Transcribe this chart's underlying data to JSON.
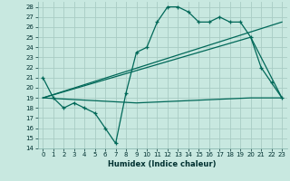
{
  "title": "",
  "xlabel": "Humidex (Indice chaleur)",
  "bg_color": "#c8e8e0",
  "grid_color": "#a8ccc4",
  "line_color": "#006858",
  "xlim": [
    -0.5,
    23.5
  ],
  "ylim": [
    14,
    28.5
  ],
  "xticks": [
    0,
    1,
    2,
    3,
    4,
    5,
    6,
    7,
    8,
    9,
    10,
    11,
    12,
    13,
    14,
    15,
    16,
    17,
    18,
    19,
    20,
    21,
    22,
    23
  ],
  "yticks": [
    14,
    15,
    16,
    17,
    18,
    19,
    20,
    21,
    22,
    23,
    24,
    25,
    26,
    27,
    28
  ],
  "series1_x": [
    0,
    1,
    2,
    3,
    4,
    5,
    6,
    7,
    8,
    9,
    10,
    11,
    12,
    13,
    14,
    15,
    16,
    17,
    18,
    19,
    20,
    21,
    22,
    23
  ],
  "series1_y": [
    21,
    19,
    18,
    18.5,
    18,
    17.5,
    16,
    14.5,
    19.5,
    23.5,
    24,
    26.5,
    28,
    28,
    27.5,
    26.5,
    26.5,
    27,
    26.5,
    26.5,
    25,
    22,
    20.5,
    19
  ],
  "series2_x": [
    0,
    9,
    20,
    23
  ],
  "series2_y": [
    19,
    18.5,
    19,
    19
  ],
  "series3_x": [
    0,
    23
  ],
  "series3_y": [
    19,
    26.5
  ],
  "series4_x": [
    0,
    20,
    23
  ],
  "series4_y": [
    19,
    25,
    19
  ]
}
